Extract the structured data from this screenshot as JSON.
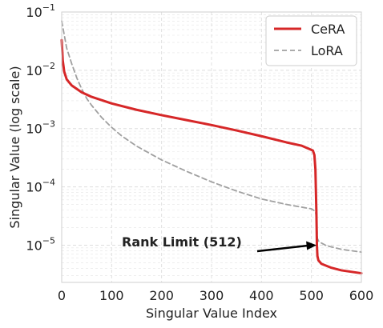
{
  "chart_data": {
    "type": "line",
    "xlabel": "Singular Value Index",
    "ylabel": "Singular Value (log scale)",
    "xlim": [
      0,
      600
    ],
    "ylim": [
      2.3e-06,
      0.1
    ],
    "y_scale": "log",
    "grid": true,
    "legend_position": "top-right",
    "x_ticks": [
      0,
      100,
      200,
      300,
      400,
      500,
      600
    ],
    "x_tick_labels": [
      "0",
      "100",
      "200",
      "300",
      "400",
      "500",
      "600"
    ],
    "y_ticks": [
      1e-05,
      0.0001,
      0.001,
      0.01,
      0.1
    ],
    "y_tick_labels": [
      {
        "base": "10",
        "exp": "−5"
      },
      {
        "base": "10",
        "exp": "−4"
      },
      {
        "base": "10",
        "exp": "−3"
      },
      {
        "base": "10",
        "exp": "−2"
      },
      {
        "base": "10",
        "exp": "−1"
      }
    ],
    "series": [
      {
        "name": "CeRA",
        "color": "#d62728",
        "style": "solid",
        "x": [
          0,
          2,
          5,
          10,
          20,
          40,
          60,
          100,
          150,
          200,
          250,
          300,
          350,
          400,
          450,
          480,
          495,
          503,
          506,
          508,
          510,
          511,
          512,
          514,
          520,
          540,
          560,
          600
        ],
        "y": [
          0.033,
          0.015,
          0.0095,
          0.007,
          0.0055,
          0.0042,
          0.0035,
          0.0027,
          0.0021,
          0.0017,
          0.0014,
          0.00115,
          0.00093,
          0.00074,
          0.00058,
          0.00051,
          0.00045,
          0.00042,
          0.00035,
          0.0002,
          3.5e-05,
          1e-05,
          6.5e-06,
          5.5e-06,
          4.8e-06,
          4.1e-06,
          3.7e-06,
          3.3e-06
        ]
      },
      {
        "name": "LoRA",
        "color": "#a0a0a0",
        "style": "dashed",
        "x": [
          0,
          10,
          20,
          30,
          40,
          50,
          60,
          80,
          100,
          120,
          150,
          200,
          250,
          300,
          350,
          400,
          450,
          480,
          500,
          508,
          510,
          511,
          512,
          515,
          530,
          560,
          600
        ],
        "y": [
          0.07,
          0.024,
          0.013,
          0.0075,
          0.0048,
          0.0033,
          0.0025,
          0.00155,
          0.00105,
          0.00075,
          0.0005,
          0.00029,
          0.000185,
          0.000122,
          8.5e-05,
          6.2e-05,
          5e-05,
          4.5e-05,
          4.2e-05,
          3.8e-05,
          3e-05,
          2e-05,
          1.3e-05,
          1.15e-05,
          9.8e-06,
          8.5e-06,
          7.6e-06
        ]
      }
    ],
    "annotations": [
      {
        "text": "Rank Limit (512)",
        "point_x": 512,
        "point_y": 1e-05
      }
    ]
  }
}
